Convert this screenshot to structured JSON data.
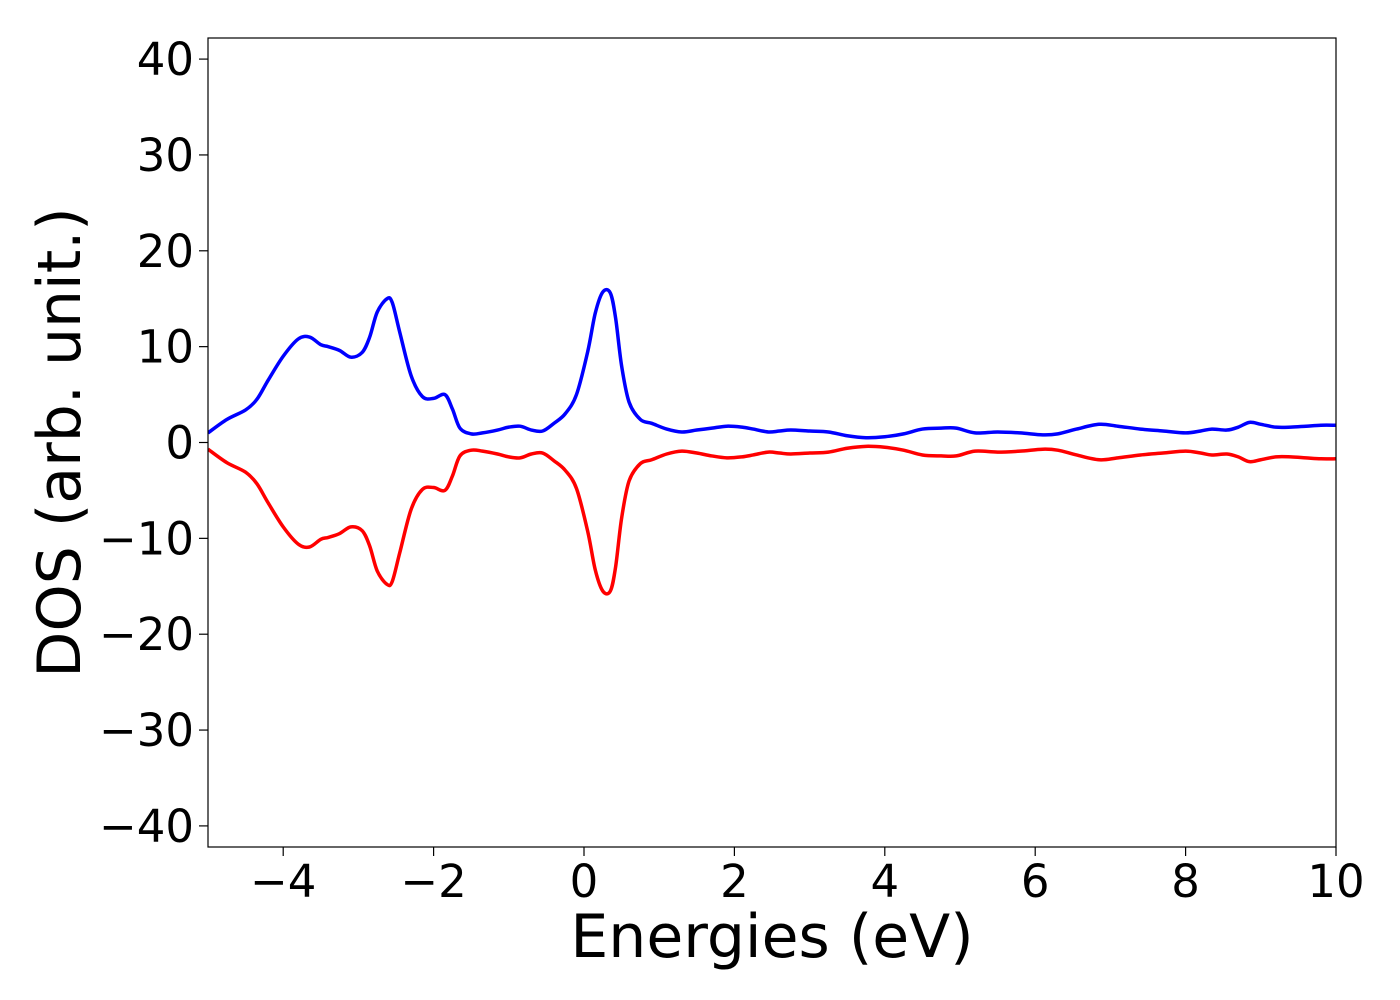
{
  "chart_data": {
    "type": "line",
    "title": "",
    "xlabel": "Energies (eV)",
    "ylabel": "DOS (arb. unit.)",
    "xlim": [
      -5,
      10
    ],
    "ylim": [
      -42.2,
      42.2
    ],
    "xticks": [
      -4,
      -2,
      0,
      2,
      4,
      6,
      8,
      10
    ],
    "xtick_labels": [
      "−4",
      "−2",
      "0",
      "2",
      "4",
      "6",
      "8",
      "10"
    ],
    "yticks": [
      40,
      30,
      20,
      10,
      0,
      -10,
      -20,
      -30,
      -40
    ],
    "ytick_labels": [
      "40",
      "30",
      "20",
      "10",
      "0",
      "−10",
      "−20",
      "−30",
      "−40"
    ],
    "grid": false,
    "legend": "none",
    "series": [
      {
        "color": "#0000ff",
        "x": [
          -5.0,
          -4.75,
          -4.5,
          -4.35,
          -4.2,
          -4.0,
          -3.8,
          -3.65,
          -3.5,
          -3.4,
          -3.25,
          -3.1,
          -2.95,
          -2.85,
          -2.75,
          -2.62,
          -2.55,
          -2.45,
          -2.3,
          -2.15,
          -2.0,
          -1.85,
          -1.75,
          -1.65,
          -1.5,
          -1.35,
          -1.15,
          -1.0,
          -0.85,
          -0.7,
          -0.55,
          -0.4,
          -0.25,
          -0.1,
          0.05,
          0.15,
          0.25,
          0.35,
          0.42,
          0.5,
          0.6,
          0.75,
          0.9,
          1.1,
          1.3,
          1.5,
          1.7,
          1.9,
          2.1,
          2.25,
          2.45,
          2.6,
          2.75,
          3.0,
          3.25,
          3.5,
          3.75,
          4.0,
          4.25,
          4.5,
          4.75,
          4.95,
          5.2,
          5.5,
          5.8,
          6.1,
          6.3,
          6.55,
          6.85,
          7.1,
          7.4,
          7.7,
          8.0,
          8.2,
          8.35,
          8.55,
          8.7,
          8.85,
          9.0,
          9.2,
          9.4,
          9.6,
          9.8,
          10.0
        ],
        "values": [
          1.0,
          2.4,
          3.4,
          4.5,
          6.5,
          9.0,
          10.8,
          11.0,
          10.2,
          10.0,
          9.6,
          8.9,
          9.4,
          11.0,
          13.6,
          15.0,
          14.6,
          11.5,
          7.0,
          4.8,
          4.6,
          5.0,
          3.5,
          1.5,
          0.9,
          1.0,
          1.3,
          1.6,
          1.7,
          1.3,
          1.2,
          2.0,
          3.0,
          5.0,
          9.5,
          13.5,
          15.7,
          15.6,
          13.0,
          8.0,
          4.2,
          2.4,
          2.0,
          1.4,
          1.1,
          1.3,
          1.5,
          1.7,
          1.6,
          1.4,
          1.1,
          1.2,
          1.3,
          1.2,
          1.1,
          0.7,
          0.5,
          0.6,
          0.9,
          1.4,
          1.5,
          1.5,
          1.0,
          1.1,
          1.0,
          0.8,
          0.9,
          1.4,
          1.9,
          1.7,
          1.4,
          1.2,
          1.0,
          1.2,
          1.4,
          1.3,
          1.6,
          2.1,
          1.9,
          1.6,
          1.6,
          1.7,
          1.8,
          1.8
        ]
      },
      {
        "color": "#ff0000",
        "x": [
          -5.0,
          -4.75,
          -4.5,
          -4.35,
          -4.2,
          -4.0,
          -3.8,
          -3.65,
          -3.5,
          -3.4,
          -3.25,
          -3.1,
          -2.95,
          -2.85,
          -2.75,
          -2.62,
          -2.55,
          -2.45,
          -2.3,
          -2.15,
          -2.0,
          -1.85,
          -1.75,
          -1.65,
          -1.5,
          -1.35,
          -1.15,
          -1.0,
          -0.85,
          -0.7,
          -0.55,
          -0.4,
          -0.25,
          -0.1,
          0.05,
          0.15,
          0.25,
          0.35,
          0.42,
          0.5,
          0.6,
          0.75,
          0.9,
          1.1,
          1.3,
          1.5,
          1.7,
          1.9,
          2.1,
          2.25,
          2.45,
          2.6,
          2.75,
          3.0,
          3.25,
          3.5,
          3.75,
          4.0,
          4.25,
          4.5,
          4.75,
          4.95,
          5.2,
          5.5,
          5.8,
          6.1,
          6.3,
          6.55,
          6.85,
          7.1,
          7.4,
          7.7,
          8.0,
          8.2,
          8.35,
          8.55,
          8.7,
          8.85,
          9.0,
          9.2,
          9.4,
          9.6,
          9.8,
          10.0
        ],
        "values": [
          -0.7,
          -2.1,
          -3.1,
          -4.3,
          -6.3,
          -8.8,
          -10.6,
          -10.9,
          -10.1,
          -9.9,
          -9.5,
          -8.8,
          -9.2,
          -10.8,
          -13.4,
          -14.8,
          -14.5,
          -11.5,
          -7.0,
          -4.9,
          -4.7,
          -5.0,
          -3.5,
          -1.4,
          -0.8,
          -0.9,
          -1.2,
          -1.5,
          -1.6,
          -1.2,
          -1.1,
          -1.9,
          -2.9,
          -4.8,
          -9.3,
          -13.3,
          -15.5,
          -15.5,
          -13.0,
          -7.9,
          -4.0,
          -2.2,
          -1.8,
          -1.2,
          -0.9,
          -1.1,
          -1.4,
          -1.6,
          -1.5,
          -1.3,
          -1.0,
          -1.1,
          -1.2,
          -1.1,
          -1.0,
          -0.6,
          -0.4,
          -0.5,
          -0.8,
          -1.3,
          -1.4,
          -1.4,
          -0.9,
          -1.0,
          -0.9,
          -0.7,
          -0.8,
          -1.3,
          -1.8,
          -1.6,
          -1.3,
          -1.1,
          -0.9,
          -1.1,
          -1.3,
          -1.2,
          -1.5,
          -2.0,
          -1.8,
          -1.5,
          -1.5,
          -1.6,
          -1.7,
          -1.7
        ]
      }
    ]
  }
}
